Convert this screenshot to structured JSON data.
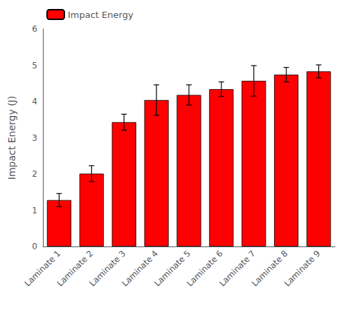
{
  "chart_data": {
    "type": "bar",
    "categories": [
      "Laminate 1",
      "Laminate 2",
      "Laminate 3",
      "Laminate 4",
      "Laminate 5",
      "Laminate 6",
      "Laminate 7",
      "Laminate 8",
      "Laminate 9"
    ],
    "series": [
      {
        "name": "Impact Energy",
        "color": "#FF0000",
        "values": [
          1.28,
          2.01,
          3.43,
          4.04,
          4.18,
          4.34,
          4.57,
          4.74,
          4.83
        ],
        "errors": [
          0.18,
          0.22,
          0.22,
          0.42,
          0.28,
          0.2,
          0.42,
          0.2,
          0.18
        ]
      }
    ],
    "ylabel": "Impact Energy (J)",
    "ylim": [
      0,
      6
    ],
    "yticks": [
      0,
      1,
      2,
      3,
      4,
      5,
      6
    ],
    "legend": "upper left",
    "grid": false
  }
}
